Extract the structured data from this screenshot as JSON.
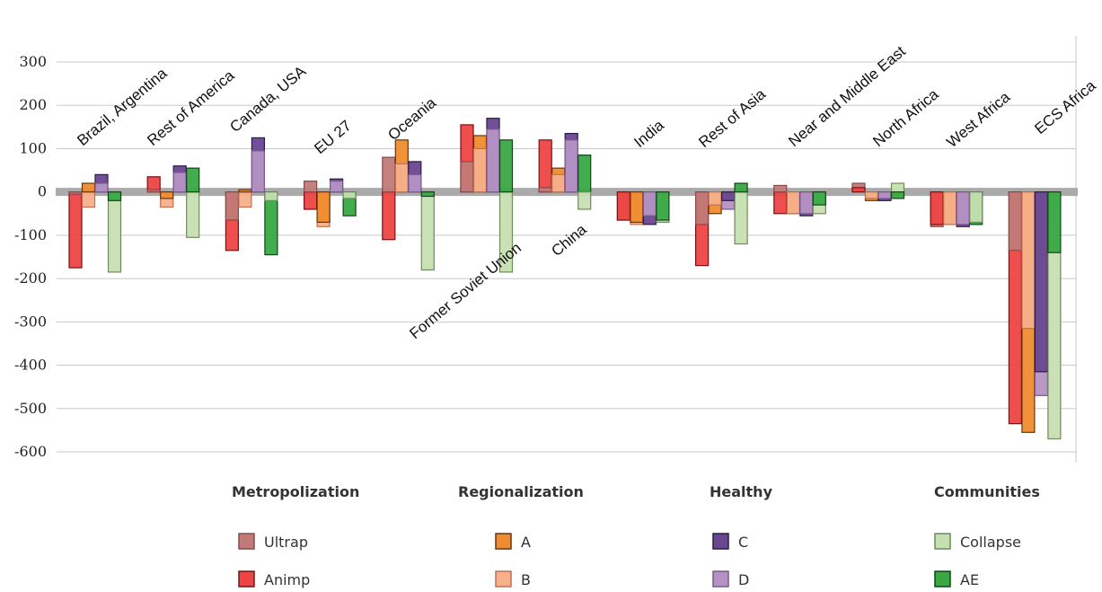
{
  "chart_data": {
    "type": "bar",
    "ylim": [
      -600,
      300
    ],
    "yticks": [
      300,
      200,
      100,
      0,
      -100,
      -200,
      -300,
      -400,
      -500,
      -600
    ],
    "grid": true,
    "legend_position": "bottom",
    "regions": [
      "Brazil, Argentina",
      "Rest of America",
      "Canada, USA",
      "EU 27",
      "Oceania",
      "Former Soviet Union",
      "China",
      "India",
      "Rest of Asia",
      "Near and Middle East",
      "North Africa",
      "West Africa",
      "ECS Africa"
    ],
    "groups": [
      {
        "name": "Metropolization",
        "series": [
          {
            "name": "Ultrap",
            "color": "#c07a78",
            "values": [
              -5,
              5,
              -65,
              25,
              80,
              70,
              10,
              -65,
              -75,
              15,
              20,
              -80,
              -135
            ]
          },
          {
            "name": "Animp",
            "color": "#ee4444",
            "values": [
              -175,
              35,
              -135,
              -40,
              -110,
              155,
              120,
              -65,
              -170,
              -50,
              10,
              -75,
              -535
            ]
          }
        ]
      },
      {
        "name": "Regionalization",
        "series": [
          {
            "name": "A",
            "color": "#ef8c2f",
            "values": [
              20,
              -15,
              5,
              -70,
              120,
              130,
              55,
              -70,
              -50,
              -50,
              -20,
              -75,
              -555
            ]
          },
          {
            "name": "B",
            "color": "#f6b08a",
            "values": [
              -35,
              -35,
              -35,
              -80,
              65,
              100,
              40,
              -75,
              -30,
              -50,
              -15,
              -75,
              -315
            ]
          }
        ]
      },
      {
        "name": "Healthy",
        "series": [
          {
            "name": "C",
            "color": "#6a4791",
            "values": [
              40,
              60,
              125,
              30,
              70,
              170,
              135,
              -75,
              -20,
              -55,
              -20,
              -80,
              -415
            ]
          },
          {
            "name": "D",
            "color": "#b592c4",
            "values": [
              20,
              45,
              95,
              25,
              40,
              145,
              120,
              -55,
              -40,
              -50,
              -15,
              -75,
              -470
            ]
          }
        ]
      },
      {
        "name": "Communities",
        "series": [
          {
            "name": "Collapse",
            "color": "#c6dfb0",
            "values": [
              -185,
              -105,
              -20,
              -15,
              -180,
              -185,
              -40,
              -70,
              -120,
              -50,
              20,
              -70,
              -570
            ]
          },
          {
            "name": "AE",
            "color": "#39a843",
            "values": [
              -20,
              55,
              -145,
              -55,
              -10,
              120,
              85,
              -65,
              20,
              -30,
              -15,
              -75,
              -140
            ]
          }
        ]
      }
    ]
  }
}
